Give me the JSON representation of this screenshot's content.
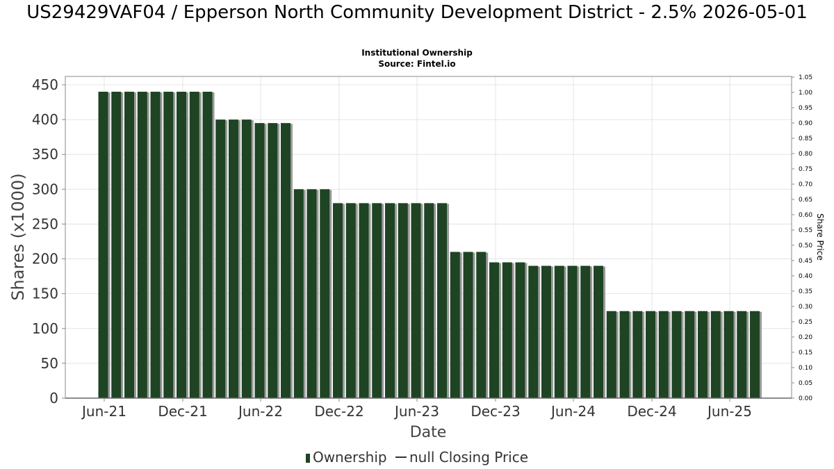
{
  "title": "US29429VAF04 / Epperson North Community Development District - 2.5% 2026-05-01",
  "subtitle_line1": "Institutional Ownership",
  "subtitle_line2": "Source: Fintel.io",
  "colors": {
    "bar": "#1e4423",
    "bar_shadow": "#9a9a9a",
    "grid": "#e4e4e4",
    "axis": "#888888"
  },
  "legend": {
    "ownership": "Ownership",
    "closing_price": "null Closing Price"
  },
  "chart_data": {
    "type": "bar",
    "xlabel": "Date",
    "ylabel": "Shares (x1000)",
    "y2label": "Share Price",
    "ylim": [
      0,
      450
    ],
    "y2lim": [
      0,
      1.05
    ],
    "yticks": [
      "0",
      "50",
      "100",
      "150",
      "200",
      "250",
      "300",
      "350",
      "400",
      "450"
    ],
    "y2ticks": [
      "0.00",
      "0.05",
      "0.10",
      "0.15",
      "0.20",
      "0.25",
      "0.30",
      "0.35",
      "0.40",
      "0.45",
      "0.50",
      "0.55",
      "0.60",
      "0.65",
      "0.70",
      "0.75",
      "0.80",
      "0.85",
      "0.90",
      "0.95",
      "1.00",
      "1.05"
    ],
    "xticks": [
      "Jun-21",
      "Dec-21",
      "Jun-22",
      "Dec-22",
      "Jun-23",
      "Dec-23",
      "Jun-24",
      "Dec-24",
      "Jun-25"
    ],
    "grid": true,
    "legend_position": "bottom",
    "series": [
      {
        "name": "Ownership",
        "values": [
          440,
          440,
          440,
          440,
          440,
          440,
          440,
          440,
          440,
          400,
          400,
          400,
          395,
          395,
          395,
          300,
          300,
          300,
          280,
          280,
          280,
          280,
          280,
          280,
          280,
          280,
          280,
          210,
          210,
          210,
          195,
          195,
          195,
          190,
          190,
          190,
          190,
          190,
          190,
          125,
          125,
          125,
          125,
          125,
          125,
          125,
          125,
          125,
          125,
          125,
          125
        ]
      }
    ]
  }
}
